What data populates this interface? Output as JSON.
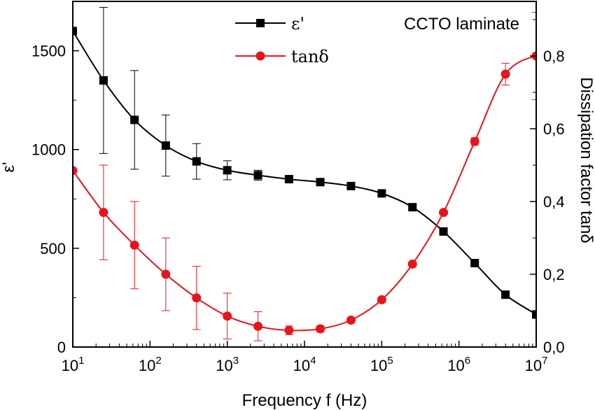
{
  "chart_data": {
    "type": "line",
    "annotation": "CCTO laminate",
    "xlabel": "Frequency f (Hz)",
    "ylabel_left": "ε'",
    "ylabel_right": "Dissipation factor tanδ",
    "x_scale": "log",
    "xlim": [
      10,
      10000000
    ],
    "x_ticks": [
      10,
      100,
      1000,
      10000,
      100000,
      1000000,
      10000000
    ],
    "x_tick_labels": [
      {
        "base": "10",
        "exp": "1"
      },
      {
        "base": "10",
        "exp": "2"
      },
      {
        "base": "10",
        "exp": "3"
      },
      {
        "base": "10",
        "exp": "4"
      },
      {
        "base": "10",
        "exp": "5"
      },
      {
        "base": "10",
        "exp": "6"
      },
      {
        "base": "10",
        "exp": "7"
      }
    ],
    "ylim_left": [
      0,
      1750
    ],
    "y_ticks_left": [
      0,
      500,
      1000,
      1500
    ],
    "y_tick_labels_left": [
      "0",
      "500",
      "1000",
      "1500"
    ],
    "ylim_right": [
      0,
      0.95
    ],
    "y_ticks_right": [
      0.0,
      0.2,
      0.4,
      0.6,
      0.8
    ],
    "y_tick_labels_right": [
      "0,0",
      "0,2",
      "0,4",
      "0,6",
      "0,8"
    ],
    "legend_position": "top-center",
    "grid": false,
    "series": [
      {
        "name": "ε'",
        "axis": "left",
        "color": "#000000",
        "marker": "square",
        "x": [
          10,
          25,
          63,
          160,
          400,
          1000,
          2500,
          6300,
          16000,
          40000,
          100000,
          250000,
          630000,
          1600000,
          4000000,
          10000000
        ],
        "y": [
          1600,
          1350,
          1150,
          1020,
          940,
          895,
          870,
          850,
          835,
          815,
          778,
          708,
          585,
          425,
          265,
          165
        ],
        "err": [
          0,
          370,
          250,
          155,
          90,
          48,
          25,
          15,
          10,
          12,
          12,
          10,
          10,
          10,
          10,
          10
        ]
      },
      {
        "name": "tanδ",
        "axis": "right",
        "color": "#e8141c",
        "marker": "circle",
        "x": [
          10,
          25,
          63,
          160,
          400,
          1000,
          2500,
          6300,
          16000,
          40000,
          100000,
          250000,
          630000,
          1600000,
          4000000,
          10000000
        ],
        "y": [
          0.485,
          0.37,
          0.28,
          0.2,
          0.135,
          0.085,
          0.057,
          0.046,
          0.05,
          0.074,
          0.13,
          0.228,
          0.37,
          0.565,
          0.75,
          0.8
        ],
        "err": [
          0,
          0.13,
          0.12,
          0.1,
          0.087,
          0.063,
          0.04,
          0.012,
          0.008,
          0.005,
          0.005,
          0.005,
          0.005,
          0.01,
          0.03,
          0.12
        ]
      }
    ]
  }
}
